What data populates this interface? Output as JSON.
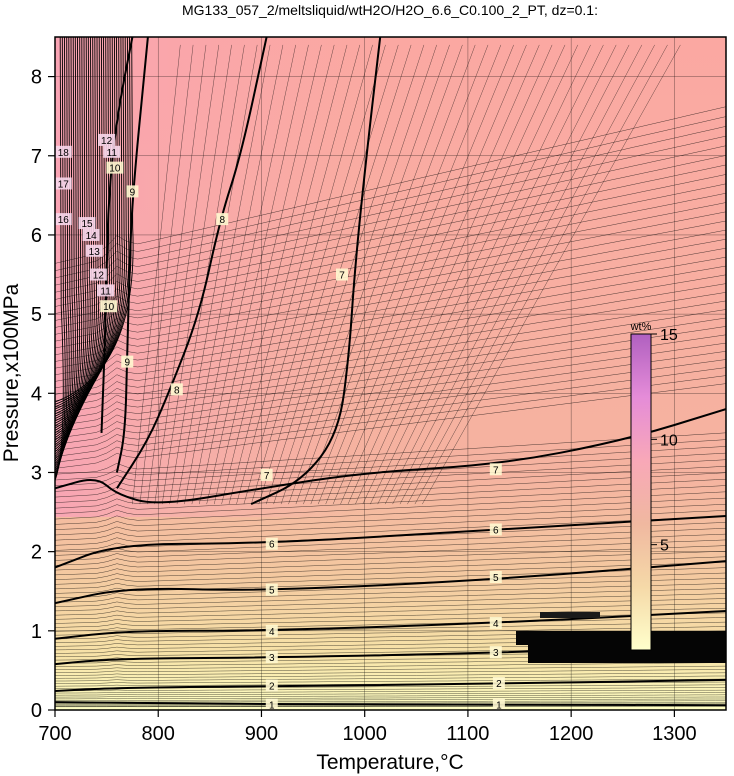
{
  "chart_data": {
    "type": "contour",
    "title": "MG133_057_2/meltsliquid/wtH2O/H2O_6.6_C0.100_2_PT, dz=0.1:",
    "xlabel": "Temperature,°C",
    "ylabel": "Pressure,x100MPa",
    "xlim": [
      700,
      1350
    ],
    "ylim": [
      0,
      8.5
    ],
    "x_ticks": [
      700,
      800,
      900,
      1000,
      1100,
      1200,
      1300
    ],
    "y_ticks": [
      0,
      1,
      2,
      3,
      4,
      5,
      6,
      7,
      8
    ],
    "grid": true,
    "contour_interval": 0.1,
    "colorbar": {
      "label": "wt%",
      "range": [
        0,
        15
      ],
      "ticks": [
        5,
        10,
        15
      ],
      "colors": [
        "#ffffcc",
        "#f5d9a8",
        "#f0b8a0",
        "#f8a8b8",
        "#e58cd8",
        "#b060c0"
      ]
    },
    "labeled_contours": [
      {
        "level": 1,
        "points": [
          [
            700,
            0.1
          ],
          [
            850,
            0.08
          ],
          [
            1000,
            0.07
          ],
          [
            1150,
            0.07
          ],
          [
            1350,
            0.06
          ]
        ]
      },
      {
        "level": 2,
        "points": [
          [
            700,
            0.24
          ],
          [
            760,
            0.28
          ],
          [
            900,
            0.3
          ],
          [
            1120,
            0.33
          ],
          [
            1350,
            0.38
          ]
        ]
      },
      {
        "level": 3,
        "points": [
          [
            700,
            0.58
          ],
          [
            760,
            0.65
          ],
          [
            900,
            0.66
          ],
          [
            1120,
            0.72
          ],
          [
            1350,
            0.82
          ]
        ]
      },
      {
        "level": 4,
        "points": [
          [
            700,
            0.9
          ],
          [
            770,
            1.0
          ],
          [
            900,
            1.0
          ],
          [
            1130,
            1.1
          ],
          [
            1350,
            1.25
          ]
        ]
      },
      {
        "level": 5,
        "points": [
          [
            700,
            1.35
          ],
          [
            770,
            1.55
          ],
          [
            900,
            1.5
          ],
          [
            1130,
            1.65
          ],
          [
            1350,
            1.88
          ]
        ]
      },
      {
        "level": 6,
        "points": [
          [
            700,
            1.8
          ],
          [
            760,
            2.1
          ],
          [
            900,
            2.1
          ],
          [
            1130,
            2.28
          ],
          [
            1350,
            2.45
          ]
        ]
      },
      {
        "level": 7,
        "points": [
          [
            700,
            2.8
          ],
          [
            740,
            2.95
          ],
          [
            760,
            2.72
          ],
          [
            800,
            2.58
          ],
          [
            900,
            2.8
          ],
          [
            1000,
            3.0
          ],
          [
            1130,
            3.1
          ],
          [
            1250,
            3.4
          ],
          [
            1350,
            3.8
          ]
        ]
      },
      {
        "level": 7,
        "points": [
          [
            890,
            2.6
          ],
          [
            940,
            2.9
          ],
          [
            975,
            3.5
          ],
          [
            985,
            4.5
          ],
          [
            990,
            5.5
          ],
          [
            1000,
            6.8
          ],
          [
            1015,
            8.5
          ]
        ]
      },
      {
        "level": 8,
        "points": [
          [
            760,
            2.8
          ],
          [
            790,
            3.4
          ],
          [
            810,
            4.0
          ],
          [
            840,
            5.0
          ],
          [
            860,
            6.2
          ],
          [
            880,
            7.0
          ],
          [
            905,
            8.5
          ]
        ]
      },
      {
        "level": 9,
        "points": [
          [
            760,
            3.0
          ],
          [
            768,
            3.5
          ],
          [
            770,
            4.5
          ],
          [
            772,
            5.5
          ],
          [
            775,
            6.5
          ],
          [
            790,
            8.5
          ]
        ]
      },
      {
        "level": 10,
        "points": [
          [
            745,
            3.5
          ],
          [
            748,
            4.5
          ],
          [
            750,
            5.5
          ],
          [
            752,
            6.5
          ],
          [
            760,
            7.5
          ],
          [
            775,
            8.5
          ]
        ]
      }
    ],
    "contour_label_values": [
      "1",
      "1",
      "2",
      "2",
      "3",
      "3",
      "4",
      "4",
      "5",
      "5",
      "6",
      "6",
      "7",
      "7",
      "7",
      "8",
      "8",
      "9",
      "9",
      "10",
      "10",
      "11",
      "11",
      "12",
      "12",
      "13",
      "14",
      "15",
      "16",
      "17",
      "18"
    ]
  }
}
